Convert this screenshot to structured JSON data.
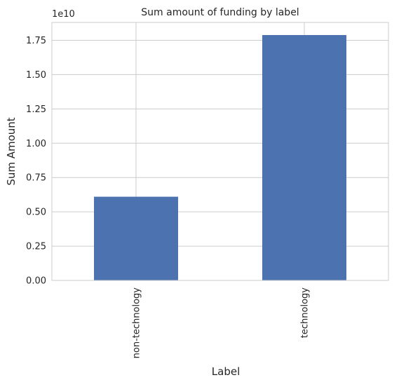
{
  "chart_data": {
    "type": "bar",
    "title": "Sum amount of funding by label",
    "xlabel": "Label",
    "ylabel": "Sum Amount",
    "offset_label": "1e10",
    "categories": [
      "non-technology",
      "technology"
    ],
    "values": [
      6100000000,
      17880000000
    ],
    "ylim": [
      0,
      18800000000
    ],
    "yticks": [
      0,
      2500000000,
      5000000000,
      7500000000,
      10000000000,
      12500000000,
      15000000000,
      17500000000
    ],
    "ytick_labels": [
      "0.00",
      "0.25",
      "0.50",
      "0.75",
      "1.00",
      "1.25",
      "1.50",
      "1.75"
    ],
    "grid": true,
    "colors": {
      "bar": "#4c72b0",
      "grid": "#cccccc",
      "spine": "#cccccc",
      "text": "#262626"
    }
  }
}
